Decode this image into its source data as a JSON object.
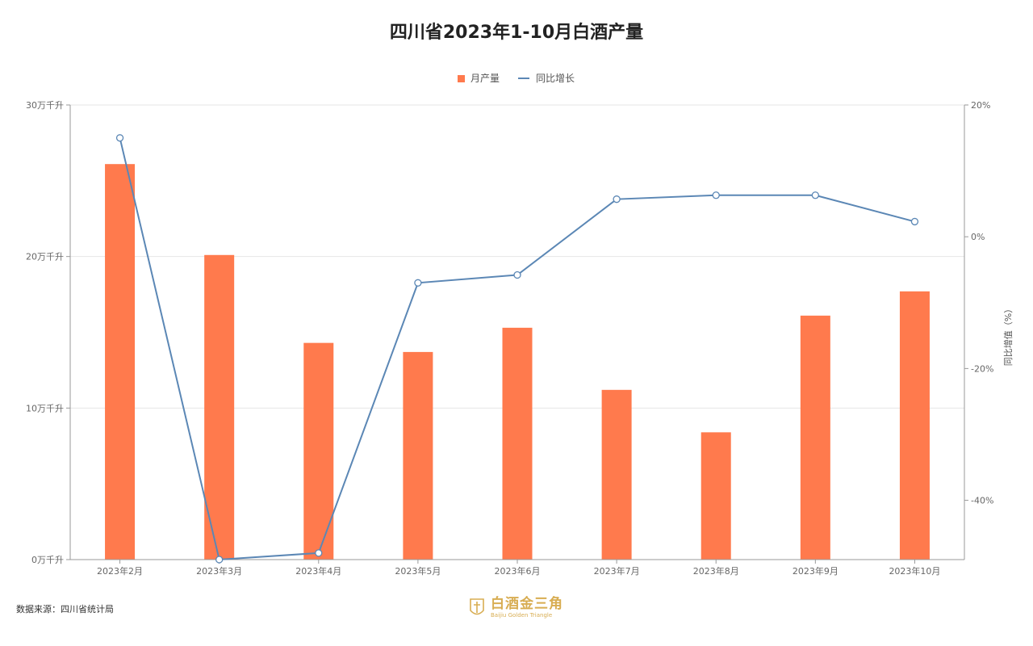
{
  "title": "四川省2023年1-10月白酒产量",
  "source": "数据来源：四川省统计局",
  "logo": {
    "name": "白酒金三角",
    "subtitle": "Baijiu Golden Triangle"
  },
  "colors": {
    "bar": "#ff7a4d",
    "line": "#5b87b5",
    "grid": "#e6e6e6",
    "axis": "#999999",
    "logo": "#d8ad52"
  },
  "chart_data": {
    "type": "bar",
    "title": "四川省2023年1-10月白酒产量",
    "categories": [
      "2023年2月",
      "2023年3月",
      "2023年4月",
      "2023年5月",
      "2023年6月",
      "2023年7月",
      "2023年8月",
      "2023年9月",
      "2023年10月"
    ],
    "series": [
      {
        "name": "月产量",
        "type": "bar",
        "axis": "left",
        "values": [
          26.1,
          20.1,
          14.3,
          13.7,
          15.3,
          11.2,
          8.4,
          16.1,
          17.7
        ]
      },
      {
        "name": "同比增长",
        "type": "line",
        "axis": "right",
        "values": [
          15.0,
          -49.0,
          -48.0,
          -7.0,
          -5.8,
          5.7,
          6.3,
          6.3,
          2.3
        ]
      }
    ],
    "y_left": {
      "ticks": [
        "0万千升",
        "10万千升",
        "20万千升",
        "30万千升"
      ],
      "ylim": [
        0,
        30
      ]
    },
    "y_right": {
      "label": "同比增值（%）",
      "ticks": [
        "-40%",
        "-20%",
        "0%",
        "20%"
      ],
      "ylim": [
        -49,
        20
      ]
    },
    "legend": {
      "placement": "top-center",
      "items": [
        "月产量",
        "同比增长"
      ]
    },
    "grid": true
  }
}
